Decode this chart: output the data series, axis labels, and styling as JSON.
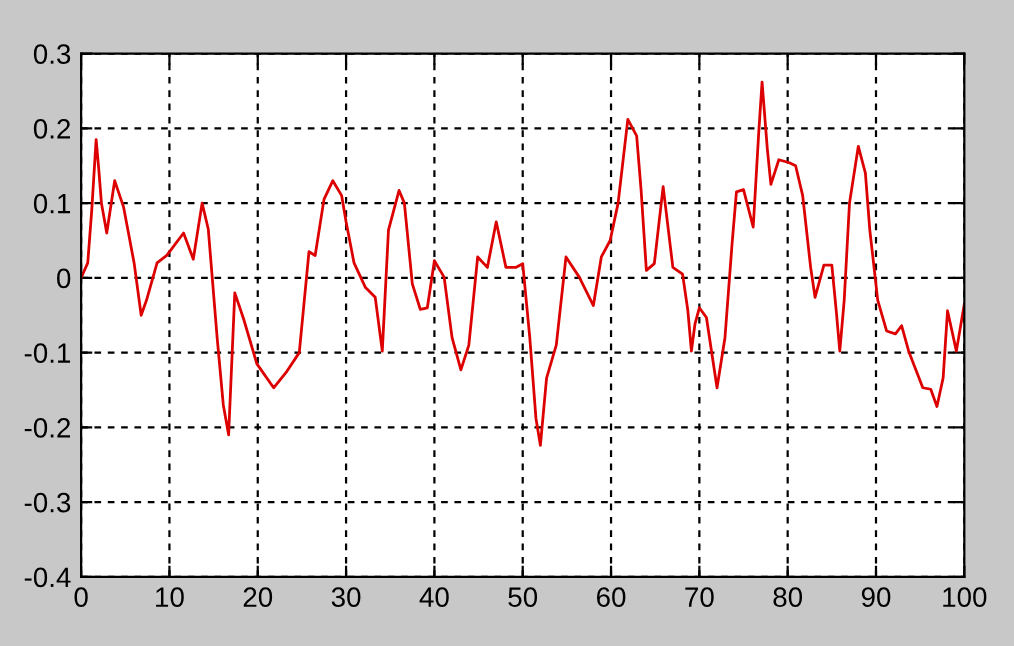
{
  "chart_data": {
    "type": "line",
    "xlim": [
      0,
      100
    ],
    "ylim": [
      -0.4,
      0.3
    ],
    "xticks": [
      0,
      10,
      20,
      30,
      40,
      50,
      60,
      70,
      80,
      90,
      100
    ],
    "yticks": [
      -0.4,
      -0.3,
      -0.2,
      -0.1,
      0,
      0.1,
      0.2,
      0.3
    ],
    "grid": true,
    "line_style": "solid",
    "marker": "none",
    "series": [
      {
        "color": "#dd0000",
        "x": [
          0,
          0.75,
          1.2,
          1.7,
          2,
          2.3,
          2.9,
          3.8,
          4.8,
          6,
          6.8,
          7.4,
          8.6,
          9.7,
          11.6,
          12.7,
          13.7,
          14.4,
          15.4,
          16.1,
          16.7,
          17.4,
          18.4,
          19.9,
          21.8,
          23.3,
          24.7,
          25.8,
          26.5,
          27.5,
          28.5,
          29.5,
          30,
          30.9,
          32.2,
          33.3,
          34.1,
          34.8,
          36,
          36.6,
          37.5,
          38.4,
          39.2,
          40,
          41.1,
          42,
          43,
          43.9,
          44.9,
          46,
          47,
          48.1,
          49.2,
          50,
          50.8,
          51.5,
          52,
          52.7,
          53.8,
          54.9,
          56.4,
          58,
          58.9,
          59.9,
          60.8,
          61.9,
          62.9,
          63.4,
          64,
          64.9,
          65.9,
          67,
          68.1,
          68.7,
          69.1,
          69.5,
          70,
          70.8,
          72,
          72.9,
          73.7,
          74.2,
          75,
          76.1,
          76.7,
          77.1,
          77.7,
          78.1,
          79,
          80.2,
          80.9,
          81.7,
          82.6,
          83.1,
          84.1,
          85,
          85.5,
          85.9,
          86.4,
          87,
          88,
          88.8,
          89.3,
          90.2,
          91.2,
          92.2,
          92.9,
          93.7,
          95.3,
          96.2,
          96.9,
          97.6,
          98.1,
          99.1,
          100
        ],
        "values": [
          0,
          0.02,
          0.09,
          0.185,
          0.145,
          0.1,
          0.06,
          0.13,
          0.095,
          0.02,
          -0.05,
          -0.03,
          0.02,
          0.03,
          0.06,
          0.025,
          0.1,
          0.065,
          -0.08,
          -0.17,
          -0.21,
          -0.02,
          -0.055,
          -0.115,
          -0.147,
          -0.125,
          -0.1,
          0.035,
          0.03,
          0.105,
          0.13,
          0.11,
          0.075,
          0.02,
          -0.013,
          -0.026,
          -0.098,
          0.064,
          0.117,
          0.1,
          -0.008,
          -0.042,
          -0.04,
          0.023,
          0.001,
          -0.08,
          -0.123,
          -0.09,
          0.028,
          0.014,
          0.075,
          0.014,
          0.014,
          0.019,
          -0.08,
          -0.188,
          -0.224,
          -0.134,
          -0.09,
          0.028,
          0.001,
          -0.037,
          0.028,
          0.05,
          0.1,
          0.212,
          0.19,
          0.118,
          0.01,
          0.019,
          0.122,
          0.014,
          0.005,
          -0.044,
          -0.098,
          -0.062,
          -0.04,
          -0.053,
          -0.147,
          -0.08,
          0.045,
          0.115,
          0.118,
          0.068,
          0.19,
          0.262,
          0.172,
          0.125,
          0.158,
          0.154,
          0.15,
          0.11,
          0.014,
          -0.026,
          0.017,
          0.017,
          -0.044,
          -0.098,
          -0.03,
          0.1,
          0.176,
          0.14,
          0.064,
          -0.03,
          -0.071,
          -0.075,
          -0.064,
          -0.098,
          -0.147,
          -0.149,
          -0.172,
          -0.134,
          -0.044,
          -0.098,
          -0.035
        ]
      }
    ]
  }
}
